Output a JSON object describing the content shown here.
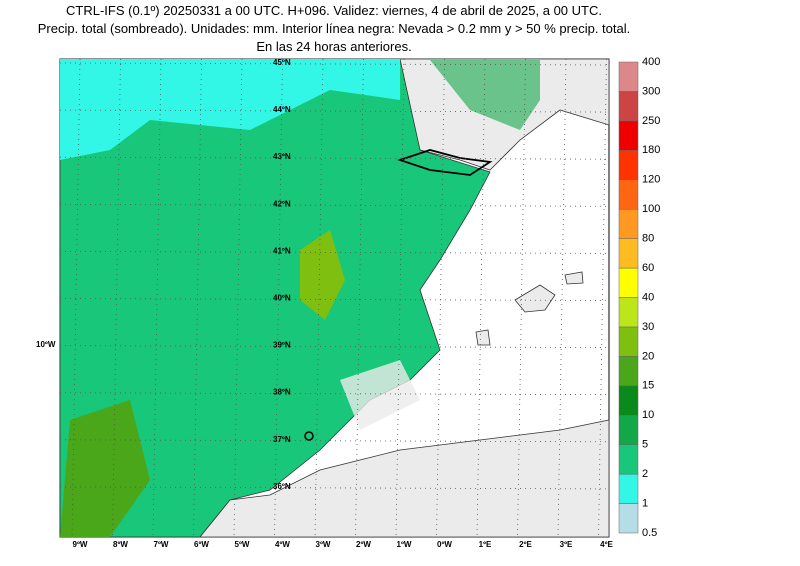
{
  "title_lines": [
    "CTRL-IFS (0.1º) 20250331 a 00 UTC. H+096. Validez: viernes, 4 de abril de 2025, a 00 UTC.",
    "Precip. total (sombreado). Unidades: mm. Interior línea negra: Nevada > 0.2 mm y > 50 % precip. total.",
    "En las 24 horas anteriores."
  ],
  "lat_labels": [
    "45ºN",
    "44ºN",
    "43ºN",
    "42ºN",
    "41ºN",
    "40ºN",
    "39ºN",
    "38ºN",
    "37ºN",
    "36ºN"
  ],
  "lon_labels": [
    "9ºW",
    "8ºW",
    "7ºW",
    "6ºW",
    "5ºW",
    "4ºW",
    "3ºW",
    "2ºW",
    "1ºW",
    "0ºW",
    "1ºE",
    "2ºE",
    "3ºE",
    "4ºE"
  ],
  "side_label": "10ºW",
  "colorbar": {
    "labels": [
      "0.5",
      "1",
      "2",
      "5",
      "10",
      "15",
      "20",
      "30",
      "40",
      "60",
      "80",
      "100",
      "120",
      "180",
      "250",
      "300",
      "400"
    ],
    "colors": [
      "#b4dde6",
      "#33f7e6",
      "#19c77a",
      "#12a84a",
      "#0a8a1a",
      "#4aa71a",
      "#7fbf0f",
      "#bde61a",
      "#ffff00",
      "#ffbb22",
      "#ff9922",
      "#ff6611",
      "#ff3300",
      "#ee0000",
      "#cc4444",
      "#dd8888"
    ]
  }
}
